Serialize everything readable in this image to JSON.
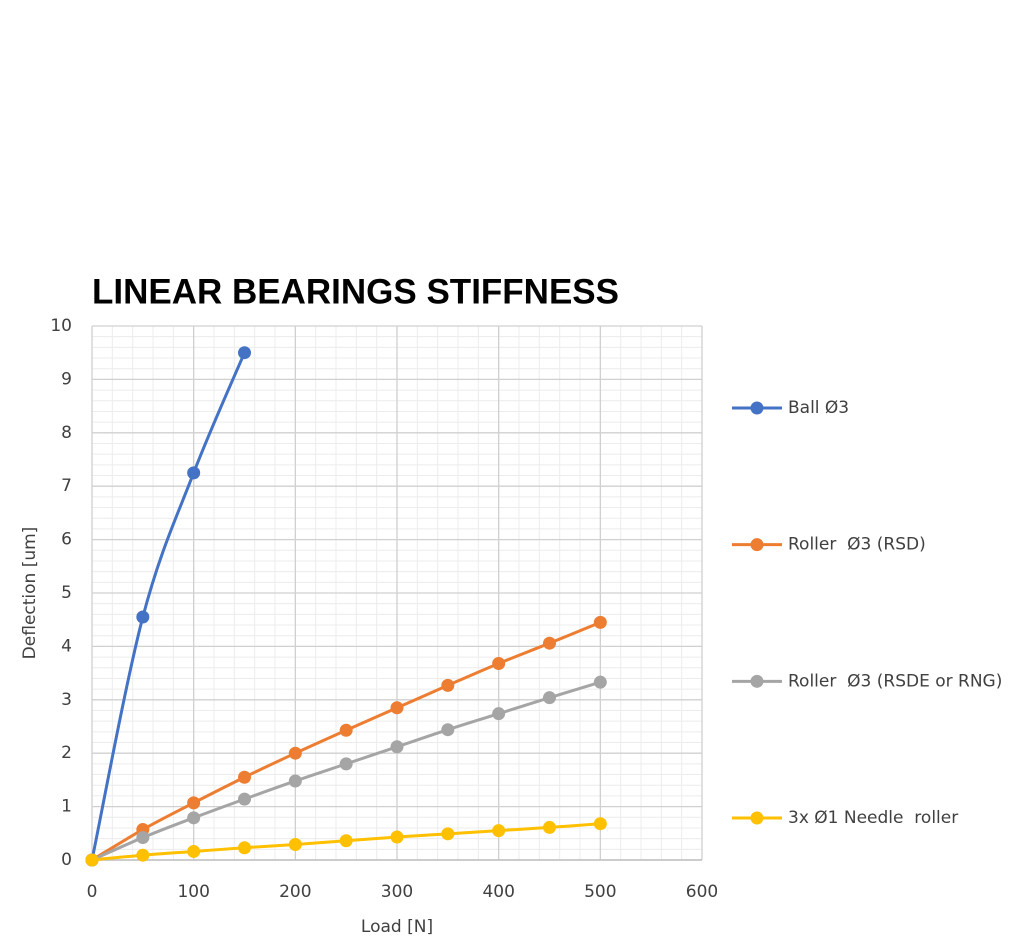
{
  "chart_data": {
    "type": "line",
    "title": "LINEAR BEARINGS STIFFNESS",
    "x_label": "Load [N]",
    "y_label": "Deflection [um]",
    "xlim": [
      0,
      600
    ],
    "xticks": [
      0,
      100,
      200,
      300,
      400,
      500,
      600
    ],
    "ylim": [
      0,
      10
    ],
    "yticks": [
      0,
      1,
      2,
      3,
      4,
      5,
      6,
      7,
      8,
      9,
      10
    ],
    "grid": true,
    "minor_grid_divisions": 5,
    "legend": "right",
    "smooth": true,
    "series": [
      {
        "name": "Ball Ø3",
        "color": "#4472c4",
        "x": [
          0,
          50,
          100,
          150
        ],
        "values": [
          0,
          4.55,
          7.25,
          9.5
        ]
      },
      {
        "name": "Roller  Ø3 (RSD)",
        "color": "#ed7d31",
        "x": [
          0,
          50,
          100,
          150,
          200,
          250,
          300,
          350,
          400,
          450,
          500
        ],
        "values": [
          0,
          0.57,
          1.07,
          1.55,
          2.0,
          2.43,
          2.85,
          3.27,
          3.68,
          4.06,
          4.45
        ]
      },
      {
        "name": "Roller  Ø3 (RSDE or RNG)",
        "color": "#a5a5a5",
        "x": [
          0,
          50,
          100,
          150,
          200,
          250,
          300,
          350,
          400,
          450,
          500
        ],
        "values": [
          0,
          0.42,
          0.79,
          1.14,
          1.48,
          1.8,
          2.12,
          2.44,
          2.74,
          3.04,
          3.33
        ]
      },
      {
        "name": "3x Ø1 Needle  roller",
        "color": "#ffc000",
        "x": [
          0,
          50,
          100,
          150,
          200,
          250,
          300,
          350,
          400,
          450,
          500
        ],
        "values": [
          0,
          0.09,
          0.16,
          0.23,
          0.29,
          0.36,
          0.43,
          0.49,
          0.55,
          0.61,
          0.68
        ]
      }
    ]
  }
}
